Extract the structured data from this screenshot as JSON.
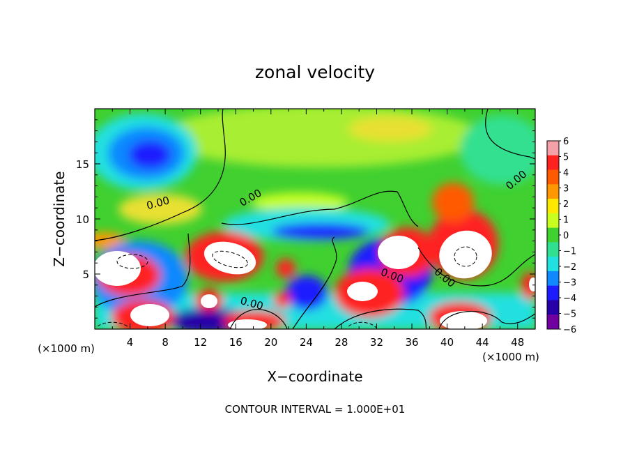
{
  "chart_data": {
    "type": "heatmap",
    "title": "zonal velocity",
    "xlabel": "X−coordinate",
    "ylabel": "Z−coordinate",
    "x_unit": "(×1000 m)",
    "y_unit": "(×1000 m)",
    "xlim": [
      0,
      50
    ],
    "ylim": [
      0,
      20
    ],
    "x_ticks": [
      "4",
      "8",
      "12",
      "16",
      "20",
      "24",
      "28",
      "32",
      "36",
      "40",
      "44",
      "48"
    ],
    "y_ticks": [
      "5",
      "10",
      "15"
    ],
    "colorbar": {
      "min": -6,
      "max": 6,
      "labels": [
        "6",
        "5",
        "4",
        "3",
        "2",
        "1",
        "0",
        "−1",
        "−2",
        "−3",
        "−4",
        "−5",
        "−6"
      ],
      "colors": [
        "#f4a0a8",
        "#ff2020",
        "#ff5a00",
        "#ff9800",
        "#ffe800",
        "#c8ff20",
        "#40d030",
        "#30e090",
        "#20e0e0",
        "#1088ff",
        "#1c1cff",
        "#2800a8",
        "#7000a0"
      ]
    },
    "contour_labels": [
      "0.00",
      "0.00",
      "0.00",
      "0.00",
      "0.00",
      "0.00"
    ],
    "footer": "CONTOUR INTERVAL = 1.000E+01",
    "features": [
      {
        "x": 6.5,
        "z": 16,
        "value": -3.8
      },
      {
        "x": 15,
        "z": 7,
        "value": 7
      },
      {
        "x": 33,
        "z": 8,
        "value": 7
      },
      {
        "x": 42,
        "z": 7,
        "value": 7
      },
      {
        "x": 2,
        "z": 4,
        "value": 7
      },
      {
        "x": 5,
        "z": 1.5,
        "value": 7
      },
      {
        "x": 30,
        "z": 3,
        "value": 7
      },
      {
        "x": 42,
        "z": 1.5,
        "value": 7
      },
      {
        "x": 25,
        "z": 9,
        "value": -3.2
      }
    ]
  }
}
